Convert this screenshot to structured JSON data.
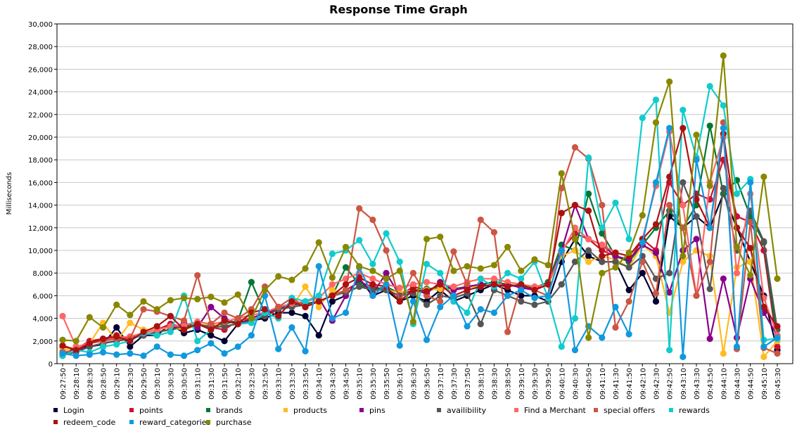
{
  "chart_data": {
    "type": "line",
    "title": "Response Time Graph",
    "xlabel": "",
    "ylabel": "Milliseconds",
    "ylim": [
      0,
      30000
    ],
    "yticks": [
      "0",
      "2,000",
      "4,000",
      "6,000",
      "8,000",
      "10,000",
      "12,000",
      "14,000",
      "16,000",
      "18,000",
      "20,000",
      "22,000",
      "24,000",
      "26,000",
      "28,000",
      "30,000"
    ],
    "ytick_values": [
      0,
      2000,
      4000,
      6000,
      8000,
      10000,
      12000,
      14000,
      16000,
      18000,
      20000,
      22000,
      24000,
      26000,
      28000,
      30000
    ],
    "x": [
      "09:27:50",
      "09:28:10",
      "09:28:30",
      "09:28:50",
      "09:29:10",
      "09:29:30",
      "09:29:50",
      "09:30:10",
      "09:30:30",
      "09:30:50",
      "09:31:10",
      "09:31:30",
      "09:31:50",
      "09:32:10",
      "09:32:30",
      "09:32:50",
      "09:33:10",
      "09:33:30",
      "09:33:50",
      "09:34:10",
      "09:34:30",
      "09:34:50",
      "09:35:10",
      "09:35:30",
      "09:35:50",
      "09:36:10",
      "09:36:30",
      "09:36:50",
      "09:37:10",
      "09:37:30",
      "09:37:50",
      "09:38:10",
      "09:38:30",
      "09:38:50",
      "09:39:10",
      "09:39:30",
      "09:39:50",
      "09:40:10",
      "09:40:30",
      "09:40:50",
      "09:41:10",
      "09:41:30",
      "09:41:50",
      "09:42:10",
      "09:42:30",
      "09:42:50",
      "09:43:10",
      "09:43:30",
      "09:43:50",
      "09:44:10",
      "09:44:30",
      "09:44:50",
      "09:45:10",
      "09:45:30"
    ],
    "grid": true,
    "legend_position": "bottom",
    "series": [
      {
        "name": "Login",
        "color": "#000033",
        "values": [
          700,
          1500,
          1500,
          1700,
          3200,
          1500,
          2500,
          2500,
          3500,
          2700,
          3000,
          2500,
          2000,
          3500,
          3800,
          4000,
          4500,
          4500,
          4200,
          2500,
          5500,
          6000,
          7500,
          6000,
          6500,
          5500,
          6000,
          5500,
          6500,
          5500,
          6000,
          6500,
          7000,
          6500,
          6000,
          6000,
          5500,
          9000,
          11000,
          9500,
          9000,
          9000,
          6500,
          8000,
          5500,
          13000,
          12000,
          13000,
          12000,
          15000,
          12000,
          9000,
          6000,
          1200
        ]
      },
      {
        "name": "points",
        "color": "#cc1133",
        "values": [
          1500,
          1300,
          2000,
          2200,
          2500,
          2200,
          2700,
          3000,
          3500,
          3200,
          3500,
          3200,
          3000,
          3800,
          4000,
          4500,
          5000,
          5200,
          5300,
          5500,
          6000,
          6500,
          7200,
          6800,
          6500,
          6000,
          6800,
          6500,
          6600,
          6500,
          6700,
          7000,
          7200,
          7000,
          6800,
          6700,
          7000,
          10000,
          11500,
          11000,
          10000,
          9500,
          9000,
          11000,
          10000,
          16000,
          14000,
          15000,
          14500,
          18000,
          13000,
          12500,
          10000,
          1500
        ]
      },
      {
        "name": "brands",
        "color": "#007733",
        "values": [
          900,
          1200,
          1500,
          1800,
          2000,
          2200,
          2500,
          2800,
          3000,
          3200,
          3500,
          3300,
          3500,
          3800,
          7200,
          4500,
          5000,
          5200,
          5300,
          5500,
          6000,
          8500,
          7000,
          6500,
          6800,
          6200,
          6500,
          6600,
          6700,
          6600,
          6800,
          7000,
          7200,
          7000,
          6800,
          6700,
          7200,
          10500,
          10000,
          15000,
          11500,
          9500,
          9000,
          10500,
          12000,
          13500,
          12000,
          14000,
          21000,
          15000,
          16200,
          13000,
          10700,
          2000
        ]
      },
      {
        "name": "products",
        "color": "#ffbb22",
        "values": [
          1200,
          1400,
          1800,
          3600,
          2000,
          3600,
          3000,
          3000,
          3200,
          3000,
          3400,
          3500,
          3300,
          3600,
          4000,
          4200,
          4800,
          5000,
          6800,
          5000,
          6500,
          6200,
          6800,
          6500,
          6500,
          6300,
          6500,
          6500,
          6600,
          6500,
          6800,
          6800,
          7000,
          6800,
          7000,
          6800,
          7000,
          9500,
          10000,
          9000,
          9500,
          9200,
          8500,
          10500,
          9500,
          4500,
          9000,
          10000,
          9500,
          900,
          8500,
          9000,
          600,
          2000
        ]
      },
      {
        "name": "pins",
        "color": "#880088",
        "values": [
          1000,
          1200,
          1500,
          1800,
          2000,
          2200,
          2500,
          2800,
          3000,
          3600,
          3200,
          5000,
          4000,
          3500,
          4000,
          4500,
          4800,
          5200,
          5500,
          5800,
          3800,
          6000,
          7500,
          6200,
          8000,
          6000,
          6500,
          6200,
          7200,
          6500,
          6800,
          7000,
          6800,
          7000,
          6700,
          6500,
          7000,
          10000,
          14000,
          11000,
          10500,
          9500,
          9200,
          10500,
          9800,
          6300,
          10000,
          11000,
          2200,
          7500,
          2300,
          7500,
          4500,
          2500
        ]
      },
      {
        "name": "availibility",
        "color": "#555555",
        "values": [
          800,
          1000,
          1500,
          1800,
          2000,
          2200,
          2500,
          2800,
          3000,
          3300,
          3500,
          3200,
          3300,
          3500,
          3800,
          4200,
          4800,
          5000,
          5200,
          5500,
          6000,
          6300,
          6800,
          6500,
          6500,
          6000,
          6200,
          5200,
          6000,
          5800,
          6200,
          3500,
          6500,
          6000,
          5500,
          5200,
          5500,
          7000,
          9000,
          10000,
          9000,
          9000,
          8500,
          9500,
          7500,
          8000,
          16000,
          13000,
          6600,
          15500,
          10000,
          13500,
          10800,
          3000
        ]
      },
      {
        "name": "Find a Merchant",
        "color": "#ff6666",
        "values": [
          4200,
          1500,
          1800,
          2000,
          2300,
          2400,
          2700,
          3000,
          3300,
          3400,
          3700,
          3500,
          3700,
          4000,
          4300,
          4500,
          5000,
          5300,
          5500,
          5800,
          7000,
          7500,
          8000,
          7500,
          7000,
          6700,
          7000,
          7200,
          7000,
          6800,
          7200,
          7500,
          7500,
          7200,
          7000,
          6800,
          7000,
          9800,
          12000,
          11000,
          10500,
          9800,
          9500,
          11000,
          15700,
          20500,
          14000,
          6000,
          16000,
          20000,
          8000,
          15000,
          5800,
          2500
        ]
      },
      {
        "name": "special offers",
        "color": "#cc5544",
        "values": [
          1000,
          1200,
          1800,
          2000,
          2200,
          2200,
          4800,
          4600,
          4200,
          3800,
          7800,
          3500,
          4500,
          4000,
          4800,
          6800,
          5000,
          5800,
          5000,
          5500,
          6000,
          6500,
          13700,
          12700,
          10000,
          5500,
          8000,
          6000,
          5500,
          9900,
          7000,
          12700,
          11600,
          2800,
          7000,
          6500,
          6000,
          15500,
          19100,
          18100,
          14000,
          3200,
          5500,
          9000,
          6200,
          14000,
          12000,
          6000,
          9000,
          21300,
          1300,
          12500,
          1400,
          900
        ]
      },
      {
        "name": "rewards",
        "color": "#11cccc",
        "values": [
          700,
          1200,
          1000,
          1500,
          1700,
          2000,
          2700,
          2500,
          2800,
          6000,
          2000,
          3000,
          3800,
          3500,
          3600,
          4500,
          4000,
          5800,
          5500,
          6000,
          9700,
          10000,
          10900,
          8800,
          11500,
          9000,
          3500,
          8800,
          8000,
          5500,
          4500,
          7500,
          6800,
          8000,
          7500,
          9000,
          5800,
          1500,
          4000,
          18200,
          12000,
          14200,
          11000,
          21700,
          23300,
          1200,
          22400,
          18200,
          24500,
          22800,
          15000,
          16300,
          2100,
          2200
        ]
      },
      {
        "name": "redeem_code",
        "color": "#aa1111",
        "values": [
          1600,
          1200,
          1800,
          2200,
          2400,
          2000,
          2800,
          3300,
          4200,
          3000,
          3500,
          3000,
          3800,
          3500,
          4500,
          4800,
          4200,
          5500,
          5000,
          5500,
          6000,
          7000,
          7600,
          7000,
          6800,
          5500,
          6500,
          6400,
          7000,
          6000,
          6500,
          6800,
          7000,
          6800,
          7000,
          6500,
          7000,
          13300,
          14000,
          13500,
          9500,
          9800,
          9500,
          11000,
          12300,
          16500,
          20800,
          14500,
          12000,
          20300,
          12000,
          10200,
          5000,
          3300
        ]
      },
      {
        "name": "reward_categories",
        "color": "#1199dd",
        "values": [
          900,
          700,
          800,
          1000,
          800,
          900,
          700,
          1500,
          800,
          700,
          1200,
          1800,
          900,
          1500,
          2500,
          6000,
          1300,
          3200,
          1100,
          8600,
          4000,
          4500,
          8500,
          6000,
          7000,
          1600,
          5500,
          2100,
          5000,
          6000,
          3300,
          4800,
          4500,
          6000,
          6500,
          5800,
          6000,
          10000,
          1200,
          3300,
          2300,
          5000,
          2600,
          10700,
          16000,
          20800,
          600,
          18000,
          12000,
          20800,
          1500,
          16000,
          1500,
          2300
        ]
      },
      {
        "name": "purchase",
        "color": "#888800",
        "values": [
          2100,
          2000,
          4100,
          3200,
          5200,
          4300,
          5500,
          4800,
          5600,
          5800,
          5700,
          5900,
          5400,
          6100,
          4000,
          6500,
          7700,
          7400,
          8400,
          10700,
          7600,
          10300,
          8600,
          8200,
          7500,
          8200,
          3700,
          11000,
          11200,
          8200,
          8600,
          8400,
          8700,
          10300,
          8200,
          9200,
          8700,
          16800,
          11000,
          2300,
          8000,
          8500,
          9800,
          13100,
          21300,
          24900,
          9500,
          20200,
          15700,
          27200,
          10300,
          7800,
          16500,
          7500
        ]
      }
    ]
  }
}
